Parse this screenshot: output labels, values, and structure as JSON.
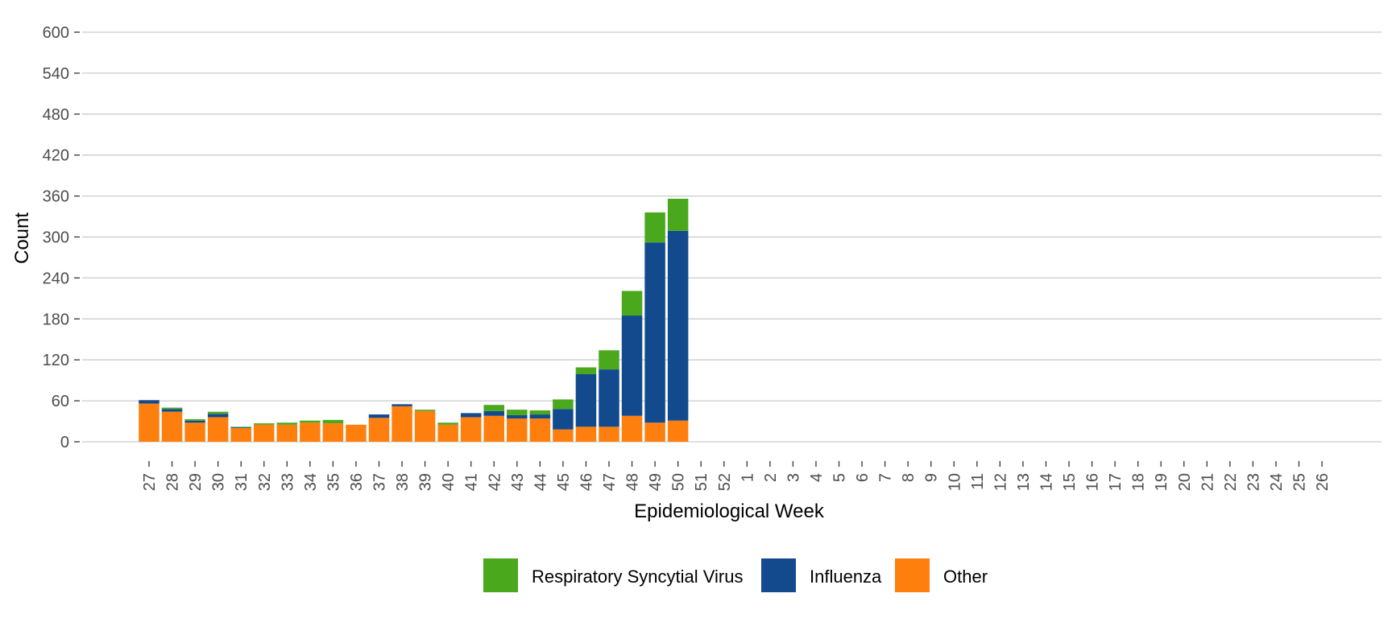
{
  "chart_data": {
    "type": "bar",
    "stacked": true,
    "title": "",
    "xlabel": "Epidemiological Week",
    "ylabel": "Count",
    "ylim": [
      0,
      600
    ],
    "yticks": [
      0,
      60,
      120,
      180,
      240,
      300,
      360,
      420,
      480,
      540,
      600
    ],
    "grid": "horizontal",
    "legend_position": "bottom",
    "categories": [
      "27",
      "28",
      "29",
      "30",
      "31",
      "32",
      "33",
      "34",
      "35",
      "36",
      "37",
      "38",
      "39",
      "40",
      "41",
      "42",
      "43",
      "44",
      "45",
      "46",
      "47",
      "48",
      "49",
      "50",
      "51",
      "52",
      "1",
      "2",
      "3",
      "4",
      "5",
      "6",
      "7",
      "8",
      "9",
      "10",
      "11",
      "12",
      "13",
      "14",
      "15",
      "16",
      "17",
      "18",
      "19",
      "20",
      "21",
      "22",
      "23",
      "24",
      "25",
      "26"
    ],
    "series": [
      {
        "name": "Other",
        "color": "#ff7f0e",
        "values": [
          56,
          44,
          28,
          36,
          20,
          25,
          25,
          28,
          27,
          25,
          35,
          52,
          45,
          25,
          36,
          38,
          34,
          34,
          18,
          22,
          22,
          38,
          28,
          31,
          null,
          null,
          null,
          null,
          null,
          null,
          null,
          null,
          null,
          null,
          null,
          null,
          null,
          null,
          null,
          null,
          null,
          null,
          null,
          null,
          null,
          null,
          null,
          null,
          null,
          null,
          null,
          null
        ]
      },
      {
        "name": "Influenza",
        "color": "#134a8e",
        "values": [
          5,
          4,
          3,
          5,
          1,
          0,
          0,
          0,
          0,
          0,
          5,
          3,
          0,
          0,
          6,
          7,
          5,
          6,
          30,
          77,
          84,
          147,
          264,
          278,
          null,
          null,
          null,
          null,
          null,
          null,
          null,
          null,
          null,
          null,
          null,
          null,
          null,
          null,
          null,
          null,
          null,
          null,
          null,
          null,
          null,
          null,
          null,
          null,
          null,
          null,
          null,
          null
        ]
      },
      {
        "name": "Respiratory Syncytial Virus",
        "color": "#4aa81d",
        "values": [
          0,
          2,
          2,
          3,
          1,
          2,
          3,
          3,
          5,
          0,
          0,
          0,
          2,
          3,
          0,
          9,
          8,
          6,
          14,
          10,
          28,
          36,
          44,
          47,
          null,
          null,
          null,
          null,
          null,
          null,
          null,
          null,
          null,
          null,
          null,
          null,
          null,
          null,
          null,
          null,
          null,
          null,
          null,
          null,
          null,
          null,
          null,
          null,
          null,
          null,
          null,
          null
        ]
      }
    ],
    "legend": [
      "Respiratory Syncytial Virus",
      "Influenza",
      "Other"
    ]
  },
  "colors": {
    "gridline": "#cccccc",
    "tick_text": "#4d4d4d",
    "axis_title": "#000000"
  }
}
